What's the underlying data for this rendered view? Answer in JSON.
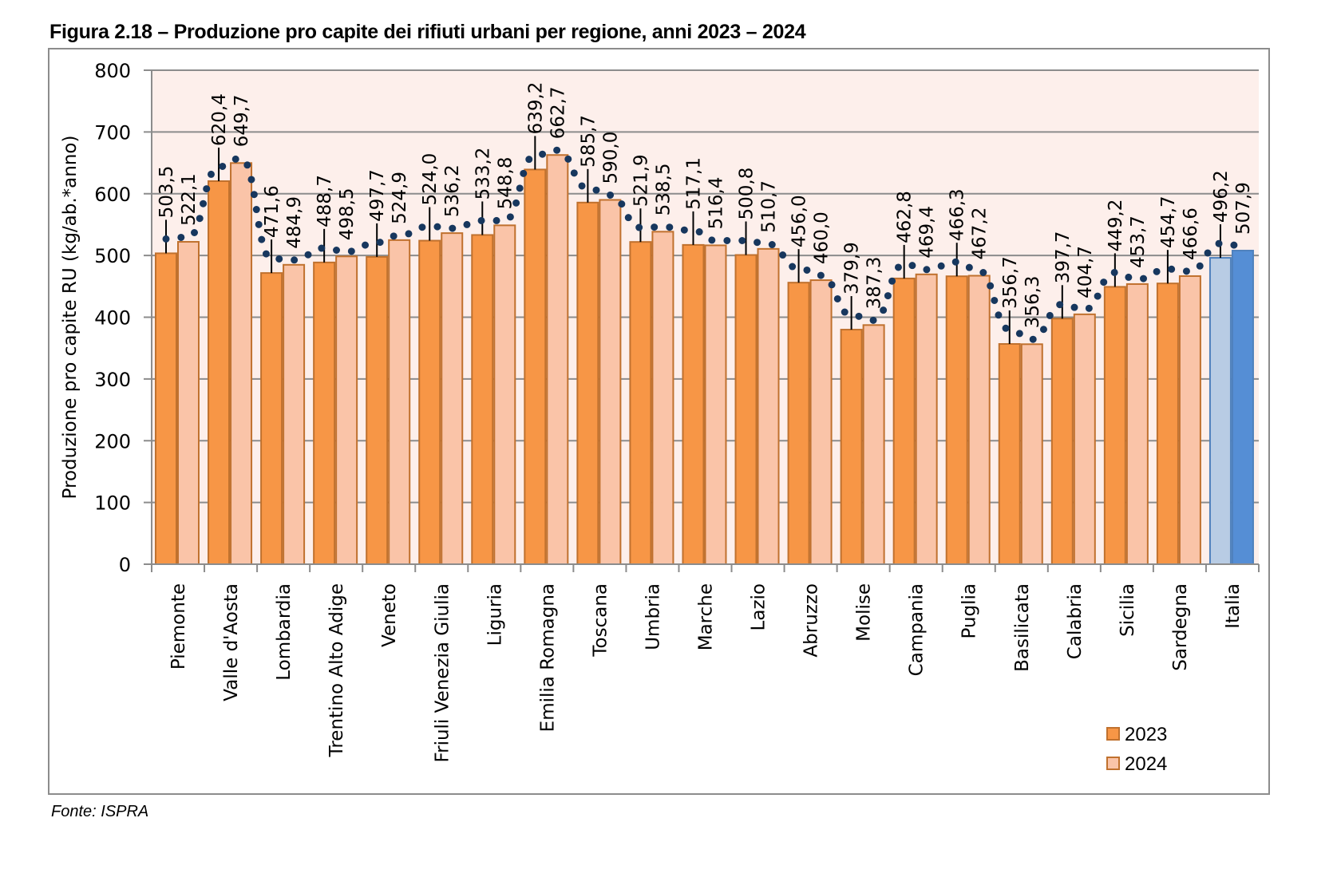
{
  "title": "Figura 2.18 – Produzione pro capite dei rifiuti urbani per regione, anni 2023 – 2024",
  "source": "Fonte: ISPRA",
  "colors": {
    "bar_2023": "#f79646",
    "bar_2024": "#fac4a8",
    "bar_border": "#c0712e",
    "italia_2023": "#b8cce4",
    "italia_2024": "#558ed5",
    "italia_border": "#4f81bd",
    "plot_bg": "#fdefeb",
    "grid": "#8c8c8c",
    "trend_dots": "#17375e"
  },
  "chart_data": {
    "type": "bar",
    "title": "Figura 2.18 – Produzione pro capite dei rifiuti urbani per regione, anni 2023 – 2024",
    "xlabel": "",
    "ylabel": "Produzione pro capite RU (kg/ab.*anno)",
    "ylim": [
      0,
      800
    ],
    "yticks": [
      0,
      100,
      200,
      300,
      400,
      500,
      600,
      700,
      800
    ],
    "grid": true,
    "legend_position": "bottom-right",
    "categories": [
      "Piemonte",
      "Valle d'Aosta",
      "Lombardia",
      "Trentino Alto Adige",
      "Veneto",
      "Friuli Venezia Giulia",
      "Liguria",
      "Emilia Romagna",
      "Toscana",
      "Umbria",
      "Marche",
      "Lazio",
      "Abruzzo",
      "Molise",
      "Campania",
      "Puglia",
      "Basilicata",
      "Calabria",
      "Sicilia",
      "Sardegna",
      "Italia"
    ],
    "series": [
      {
        "name": "2023",
        "values": [
          503.5,
          620.4,
          471.6,
          488.7,
          497.7,
          524.0,
          533.2,
          639.2,
          585.7,
          521.9,
          517.1,
          500.8,
          456.0,
          379.9,
          462.8,
          466.3,
          356.7,
          397.7,
          449.2,
          454.7,
          496.2
        ],
        "labels": [
          "503,5",
          "620,4",
          "471,6",
          "488,7",
          "497,7",
          "524,0",
          "533,2",
          "639,2",
          "585,7",
          "521,9",
          "517,1",
          "500,8",
          "456,0",
          "379,9",
          "462,8",
          "466,3",
          "356,7",
          "397,7",
          "449,2",
          "454,7",
          "496,2"
        ]
      },
      {
        "name": "2024",
        "values": [
          522.1,
          649.7,
          484.9,
          498.5,
          524.9,
          536.2,
          548.8,
          662.7,
          590.0,
          538.5,
          516.4,
          510.7,
          460.0,
          387.3,
          469.4,
          467.2,
          356.3,
          404.7,
          453.7,
          466.6,
          507.9
        ],
        "labels": [
          "522,1",
          "649,7",
          "484,9",
          "498,5",
          "524,9",
          "536,2",
          "548,8",
          "662,7",
          "590,0",
          "538,5",
          "516,4",
          "510,7",
          "460,0",
          "387,3",
          "469,4",
          "467,2",
          "356,3",
          "404,7",
          "453,7",
          "466,6",
          "507,9"
        ]
      }
    ],
    "legend": [
      "2023",
      "2024"
    ],
    "highlighted_category": "Italia",
    "trend_line": {
      "style": "dotted",
      "description": "smoothed dotted line through the bar values"
    }
  }
}
